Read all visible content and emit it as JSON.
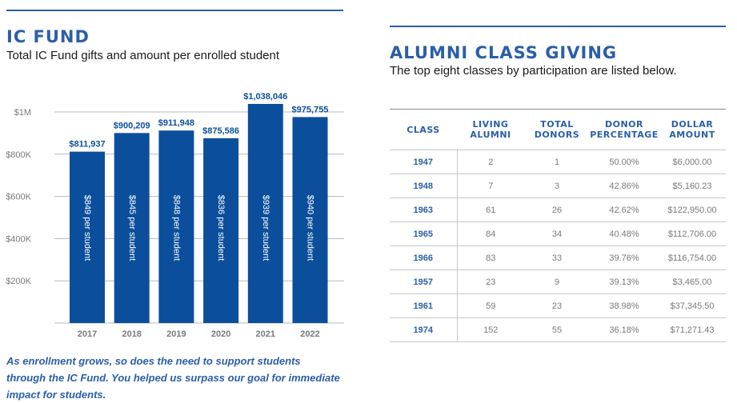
{
  "left_panel": {
    "title": "IC FUND",
    "subtitle": "Total IC Fund gifts and amount per enrolled student",
    "caption": "As enrollment grows, so does the need to support students through the IC Fund. You helped us surpass our goal for immediate impact for students."
  },
  "chart_data": {
    "type": "bar",
    "categories": [
      "2017",
      "2018",
      "2019",
      "2020",
      "2021",
      "2022"
    ],
    "values": [
      811937,
      900209,
      911948,
      875586,
      1038046,
      975755
    ],
    "data_labels": [
      "$811,937",
      "$900,209",
      "$911,948",
      "$875,586",
      "$1,038,046",
      "$975,755"
    ],
    "per_student_labels": [
      "$849 per student",
      "$845 per student",
      "$848 per student",
      "$836 per student",
      "$939 per student",
      "$940 per student"
    ],
    "y_ticks": [
      {
        "value": 200000,
        "label": "$200K"
      },
      {
        "value": 400000,
        "label": "$400K"
      },
      {
        "value": 600000,
        "label": "$600K"
      },
      {
        "value": 800000,
        "label": "$800K"
      },
      {
        "value": 1000000,
        "label": "$1M"
      }
    ],
    "ylim": [
      0,
      1000000
    ],
    "grid": true,
    "bar_color": "#0b4f9c",
    "grid_color": "#b8b8b8"
  },
  "right_panel": {
    "title": "ALUMNI CLASS GIVING",
    "subtitle": "The top eight classes by participation are listed below.",
    "table": {
      "headers": [
        {
          "line1": "CLASS",
          "line2": ""
        },
        {
          "line1": "LIVING",
          "line2": "ALUMNI"
        },
        {
          "line1": "TOTAL",
          "line2": "DONORS"
        },
        {
          "line1": "DONOR",
          "line2": "PERCENTAGE"
        },
        {
          "line1": "DOLLAR",
          "line2": "AMOUNT"
        }
      ],
      "rows": [
        [
          "1947",
          "2",
          "1",
          "50.00%",
          "$6,000.00"
        ],
        [
          "1948",
          "7",
          "3",
          "42.86%",
          "$5,160.23"
        ],
        [
          "1963",
          "61",
          "26",
          "42.62%",
          "$122,950.00"
        ],
        [
          "1965",
          "84",
          "34",
          "40.48%",
          "$112,706.00"
        ],
        [
          "1966",
          "83",
          "33",
          "39.76%",
          "$116,754.00"
        ],
        [
          "1957",
          "23",
          "9",
          "39.13%",
          "$3,465.00"
        ],
        [
          "1961",
          "59",
          "23",
          "38.98%",
          "$37,345.50"
        ],
        [
          "1974",
          "152",
          "55",
          "36.18%",
          "$71,271.43"
        ]
      ]
    }
  },
  "accent_color": "#2a5fa8"
}
